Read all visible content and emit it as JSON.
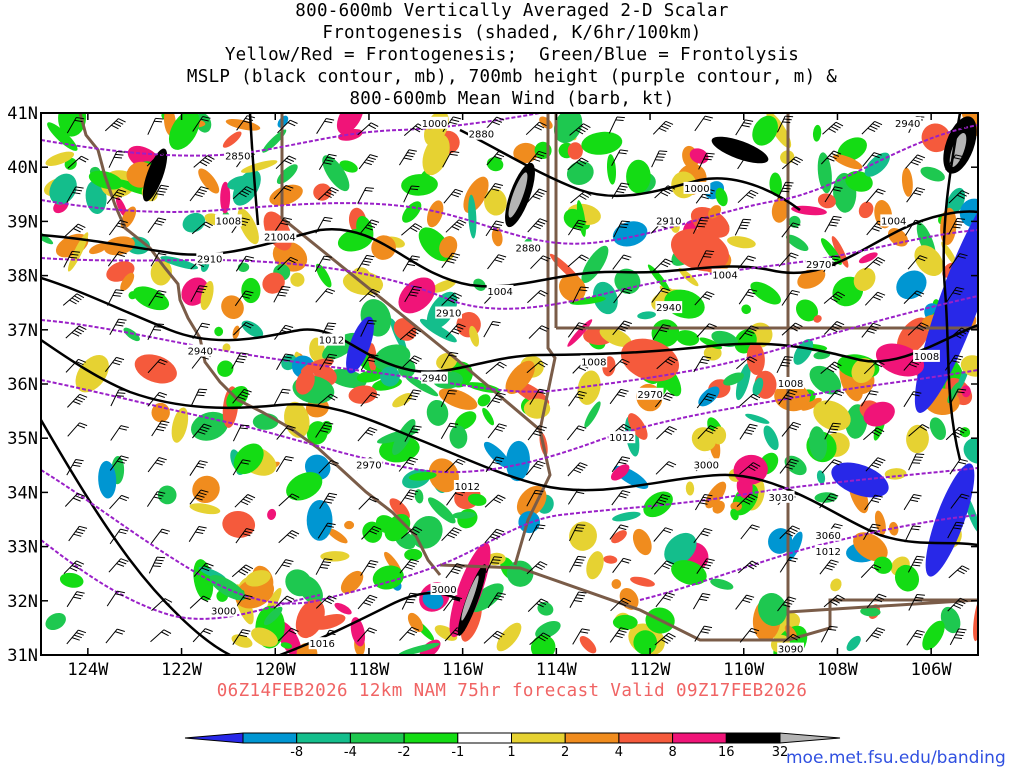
{
  "title": {
    "lines": [
      "800-600mb Vertically Averaged 2-D Scalar",
      "Frontogenesis (shaded, K/6hr/100km)",
      "Yellow/Red = Frontogenesis;  Green/Blue = Frontolysis",
      "MSLP (black contour, mb), 700mb height (purple contour, m) &",
      "800-600mb Mean Wind (barb, kt)"
    ]
  },
  "valid_line": "06Z14FEB2026 12km NAM 75hr forecast Valid 09Z17FEB2026",
  "credit": "moe.met.fsu.edu/banding",
  "axes": {
    "lat_labels": [
      "41N",
      "40N",
      "39N",
      "38N",
      "37N",
      "36N",
      "35N",
      "34N",
      "33N",
      "32N",
      "31N"
    ],
    "lon_labels": [
      "124W",
      "122W",
      "120W",
      "118W",
      "116W",
      "114W",
      "112W",
      "110W",
      "108W",
      "106W"
    ],
    "lat_range": [
      31,
      41
    ],
    "lon_range": [
      -125,
      -105
    ]
  },
  "colorbar": {
    "labels": [
      "-8",
      "-4",
      "-2",
      "-1",
      "1",
      "2",
      "4",
      "8",
      "16",
      "32"
    ],
    "colors": [
      "#2828e8",
      "#0096d2",
      "#14be8c",
      "#1ec850",
      "#14dc14",
      "#ffffff",
      "#e6d232",
      "#f08c1e",
      "#f55a3c",
      "#f01478",
      "#000000",
      "#b4b4b4"
    ]
  },
  "pressure_labels": [
    "1000",
    "1004",
    "1008",
    "1012",
    "1016"
  ],
  "height_labels": [
    "2850",
    "2880",
    "2910",
    "2940",
    "2970",
    "3000",
    "3030",
    "3060",
    "3090"
  ],
  "map_labels": [
    {
      "text": "1000",
      "lon": -116.6,
      "lat": 40.8
    },
    {
      "text": "2880",
      "lon": -115.6,
      "lat": 40.6
    },
    {
      "text": "2850",
      "lon": -120.8,
      "lat": 40.2
    },
    {
      "text": "1000",
      "lon": -111.0,
      "lat": 39.6
    },
    {
      "text": "2940",
      "lon": -106.5,
      "lat": 40.8
    },
    {
      "text": "1008",
      "lon": -121.0,
      "lat": 39.0
    },
    {
      "text": "21004",
      "lon": -119.9,
      "lat": 38.7
    },
    {
      "text": "2880",
      "lon": -114.6,
      "lat": 38.5
    },
    {
      "text": "2910",
      "lon": -111.6,
      "lat": 39.0
    },
    {
      "text": "1004",
      "lon": -106.8,
      "lat": 39.0
    },
    {
      "text": "2910",
      "lon": -121.4,
      "lat": 38.3
    },
    {
      "text": "1004",
      "lon": -110.4,
      "lat": 38.0
    },
    {
      "text": "2970",
      "lon": -108.4,
      "lat": 38.2
    },
    {
      "text": "1004",
      "lon": -115.2,
      "lat": 37.7
    },
    {
      "text": "2940",
      "lon": -111.6,
      "lat": 37.4
    },
    {
      "text": "2910",
      "lon": -116.3,
      "lat": 37.3
    },
    {
      "text": "1012",
      "lon": -118.8,
      "lat": 36.8
    },
    {
      "text": "1008",
      "lon": -106.1,
      "lat": 36.5
    },
    {
      "text": "2940",
      "lon": -121.6,
      "lat": 36.6
    },
    {
      "text": "1008",
      "lon": -113.2,
      "lat": 36.4
    },
    {
      "text": "1008",
      "lon": -109.0,
      "lat": 36.0
    },
    {
      "text": "2940",
      "lon": -116.6,
      "lat": 36.1
    },
    {
      "text": "2970",
      "lon": -112.0,
      "lat": 35.8
    },
    {
      "text": "1012",
      "lon": -112.6,
      "lat": 35.0
    },
    {
      "text": "3000",
      "lon": -110.8,
      "lat": 34.5
    },
    {
      "text": "2970",
      "lon": -118.0,
      "lat": 34.5
    },
    {
      "text": "1012",
      "lon": -115.9,
      "lat": 34.1
    },
    {
      "text": "3030",
      "lon": -109.2,
      "lat": 33.9
    },
    {
      "text": "3060",
      "lon": -108.2,
      "lat": 33.2
    },
    {
      "text": "1012",
      "lon": -108.2,
      "lat": 32.9
    },
    {
      "text": "3000",
      "lon": -116.4,
      "lat": 32.2
    },
    {
      "text": "3000",
      "lon": -121.1,
      "lat": 31.8
    },
    {
      "text": "1016",
      "lon": -119.0,
      "lat": 31.2
    },
    {
      "text": "3090",
      "lon": -109.0,
      "lat": 31.1
    }
  ]
}
